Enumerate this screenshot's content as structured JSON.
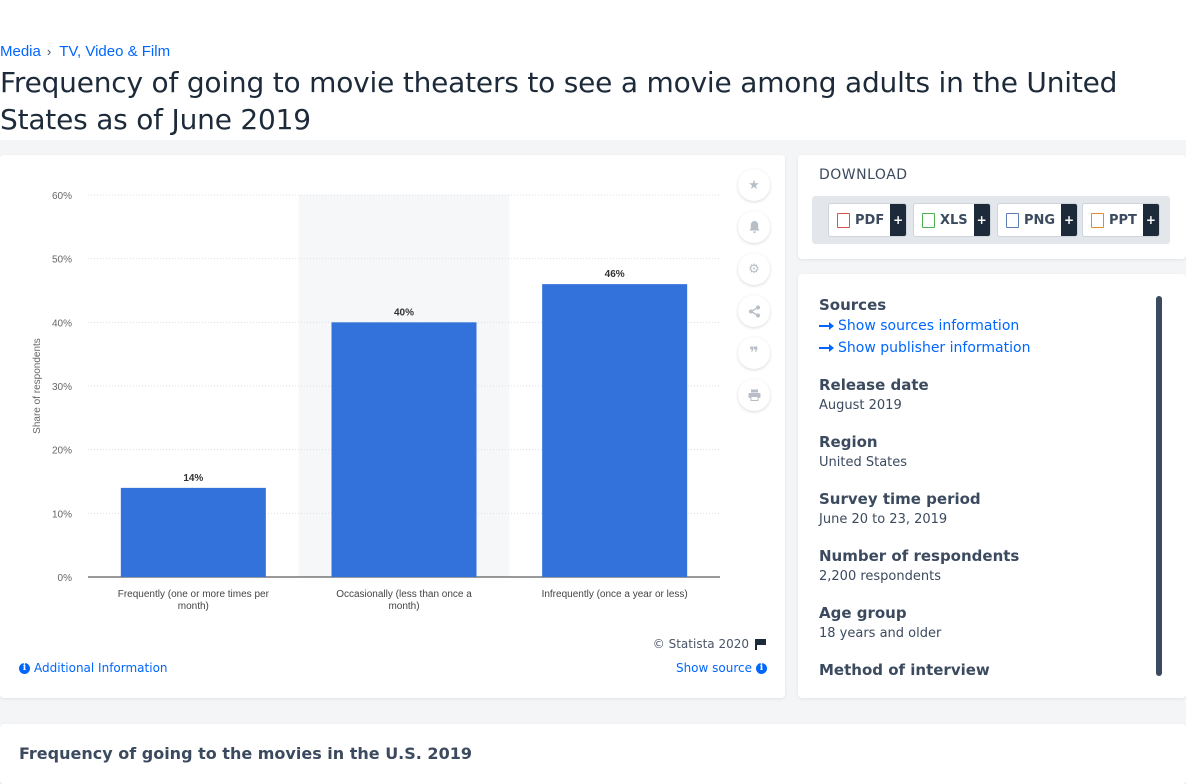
{
  "breadcrumb": {
    "items": [
      "Media",
      "TV, Video & Film"
    ]
  },
  "title": "Frequency of going to movie theaters to see a movie among adults in the United States as of June 2019",
  "chart_data": {
    "type": "bar",
    "categories": [
      "Frequently (one or more times per month)",
      "Occasionally (less than once a month)",
      "Infrequently (once a year or less)"
    ],
    "values": [
      14,
      40,
      46
    ],
    "data_labels": [
      "14%",
      "40%",
      "46%"
    ],
    "ylabel": "Share of respondents",
    "yticks": [
      "0%",
      "10%",
      "20%",
      "30%",
      "40%",
      "50%",
      "60%"
    ],
    "ylim": [
      0,
      60
    ],
    "grid": true,
    "bar_color": "#3371db"
  },
  "chart_footer": {
    "copyright": "© Statista 2020",
    "additional_info": "Additional Information",
    "show_source": "Show source"
  },
  "toolbar_icons": [
    "star-icon",
    "bell-icon",
    "gear-icon",
    "share-icon",
    "quote-icon",
    "print-icon"
  ],
  "download": {
    "title": "DOWNLOAD",
    "buttons": [
      "PDF",
      "XLS",
      "PNG",
      "PPT"
    ],
    "plus": "+"
  },
  "info": {
    "sources_label": "Sources",
    "show_sources": "Show sources information",
    "show_publisher": "Show publisher information",
    "release_date_label": "Release date",
    "release_date": "August 2019",
    "region_label": "Region",
    "region": "United States",
    "survey_period_label": "Survey time period",
    "survey_period": "June 20 to 23, 2019",
    "respondents_label": "Number of respondents",
    "respondents": "2,200 respondents",
    "age_group_label": "Age group",
    "age_group": "18 years and older",
    "method_label": "Method of interview"
  },
  "bottom": {
    "title": "Frequency of going to the movies in the U.S. 2019"
  },
  "colors": {
    "accent": "#0066ff",
    "bar": "#3371db",
    "text": "#1d2a3a"
  }
}
